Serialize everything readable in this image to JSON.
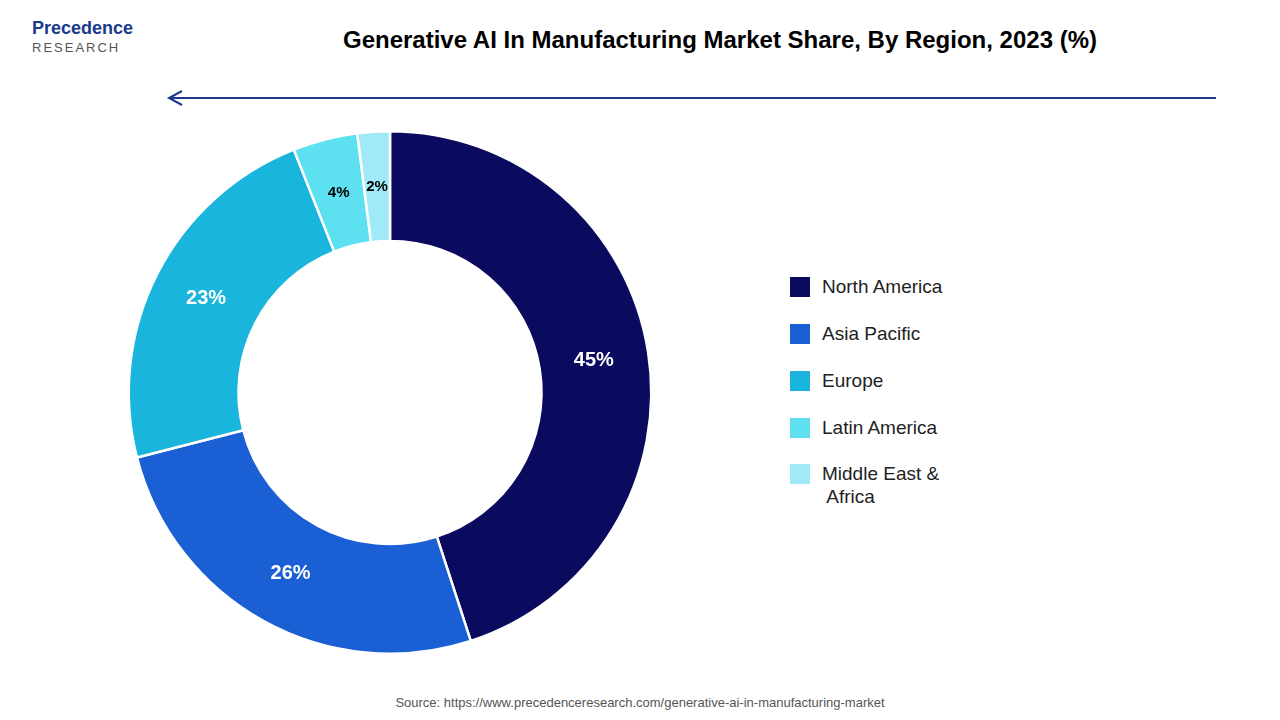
{
  "chart_data": {
    "type": "doughnut",
    "title": "Generative AI In Manufacturing Market Share, By Region, 2023 (%)",
    "categories": [
      "North America",
      "Asia Pacific",
      "Europe",
      "Latin America",
      "Middle East &\n Africa"
    ],
    "values": [
      45,
      26,
      23,
      4,
      2
    ],
    "value_labels": [
      "45%",
      "26%",
      "23%",
      "4%",
      "2%"
    ],
    "colors": [
      "#0a0a5e",
      "#1a5fd4",
      "#1ab5dc",
      "#5de0f0",
      "#a0eaf8"
    ],
    "data_labels": true,
    "legend": "right",
    "annotations": [
      "Precedence",
      "RESEARCH",
      "Source: https://www.precedenceresearch.com/generative-ai-in-manufacturing-market"
    ]
  }
}
